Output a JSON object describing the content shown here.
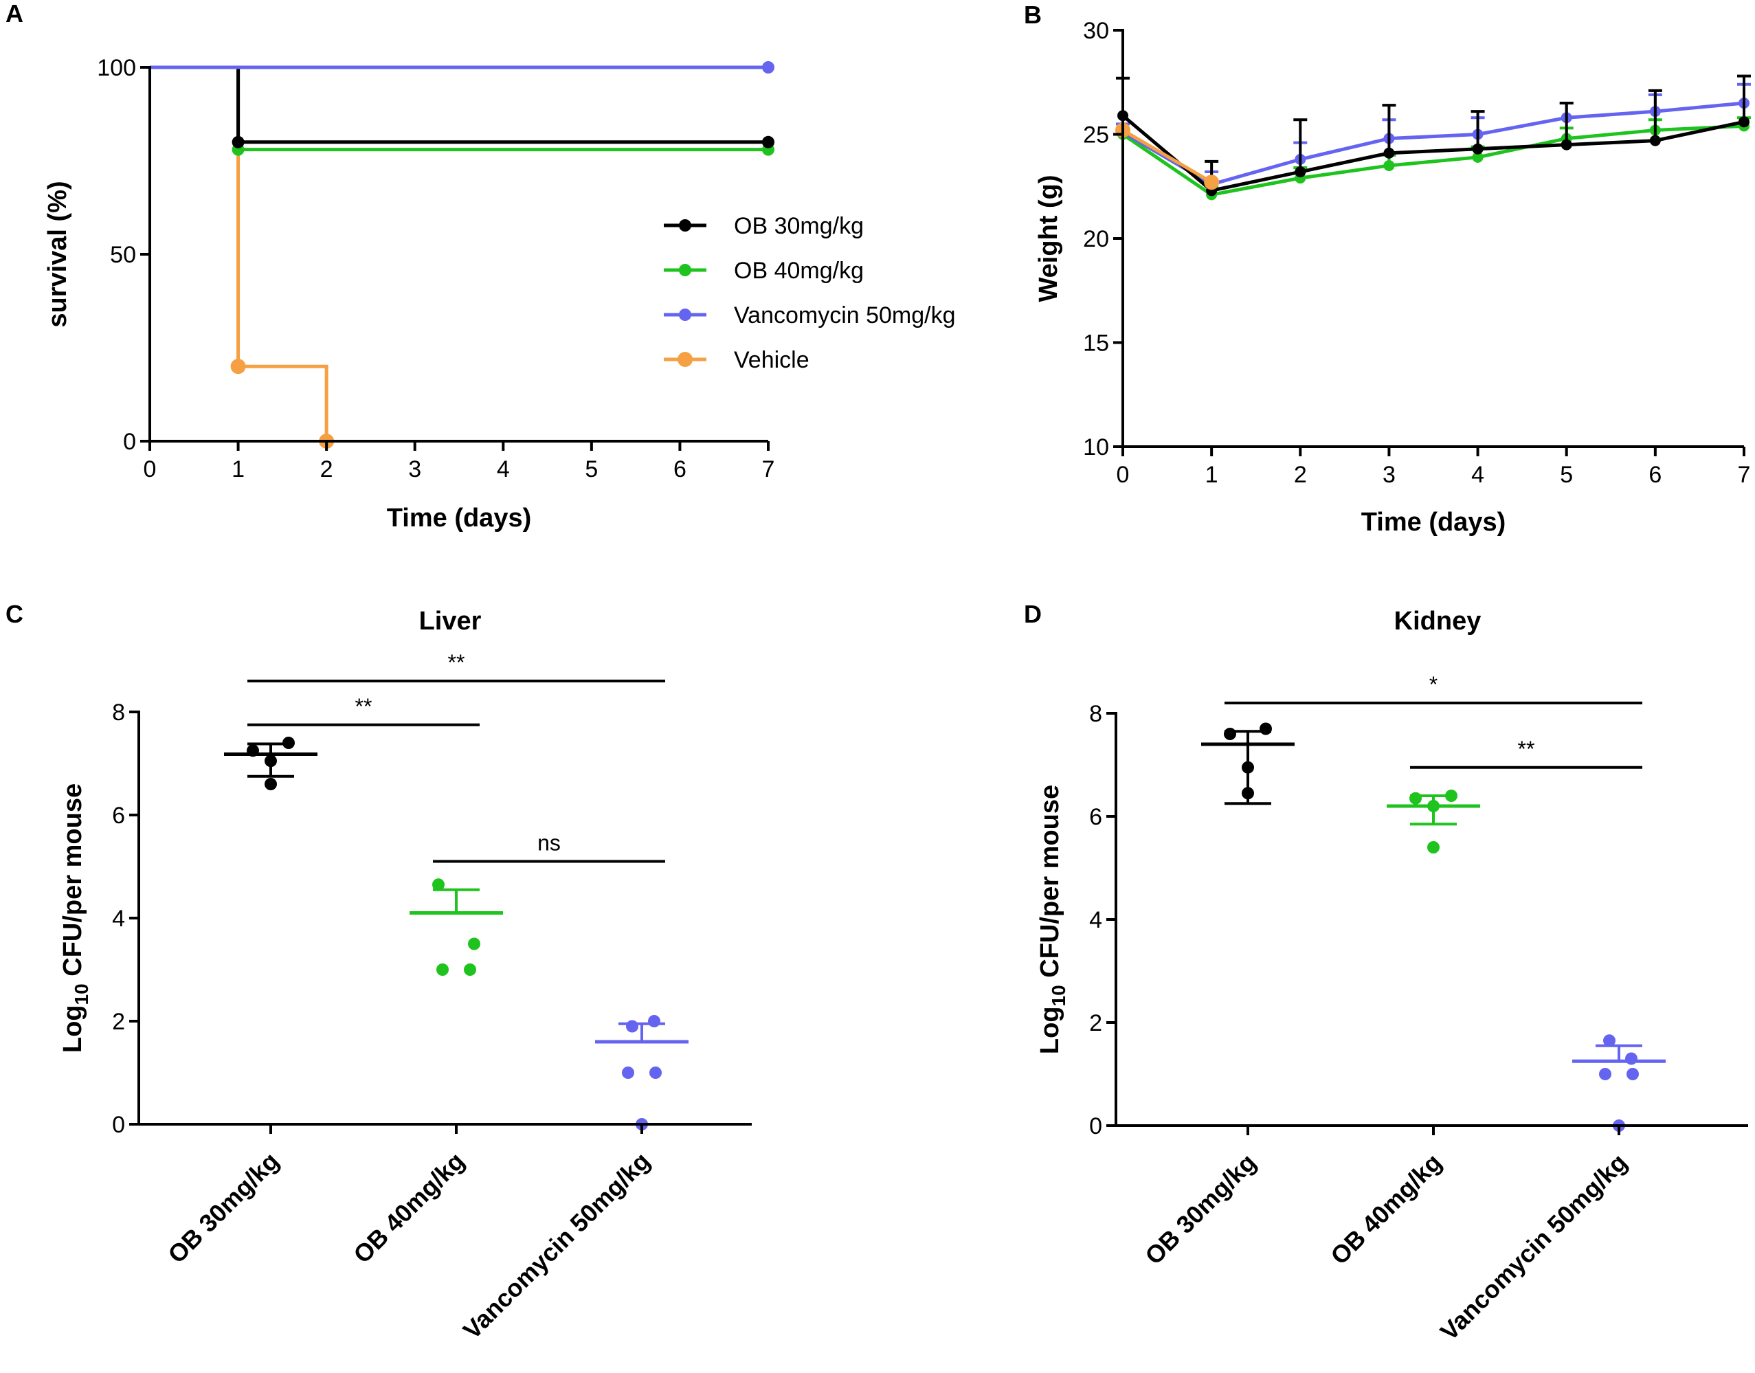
{
  "chart_data": [
    {
      "panel": "A",
      "type": "line",
      "step": true,
      "title": "",
      "xlabel": "Time (days)",
      "ylabel": "survival (%)",
      "xlim": [
        0,
        7
      ],
      "ylim": [
        0,
        100
      ],
      "x_ticks": [
        "0",
        "1",
        "2",
        "3",
        "4",
        "5",
        "6",
        "7"
      ],
      "y_ticks": [
        "0",
        "50",
        "100"
      ],
      "legend_position": "center-right",
      "series": [
        {
          "name": "OB 30mg/kg",
          "color": "#000000",
          "x": [
            0,
            1,
            7
          ],
          "y": [
            100,
            80,
            80
          ],
          "markers_x": [
            1,
            7
          ],
          "markers_y": [
            80,
            80
          ]
        },
        {
          "name": "OB 40mg/kg",
          "color": "#1EC31E",
          "x": [
            0,
            1,
            7
          ],
          "y": [
            100,
            78,
            78
          ],
          "markers_x": [
            1,
            7
          ],
          "markers_y": [
            78,
            78
          ]
        },
        {
          "name": "Vancomycin 50mg/kg",
          "color": "#6464F0",
          "x": [
            0,
            1,
            7
          ],
          "y": [
            100,
            100,
            100
          ],
          "markers_x": [
            7
          ],
          "markers_y": [
            100
          ]
        },
        {
          "name": "Vehicle",
          "color": "#F5A042",
          "x": [
            0,
            1,
            2
          ],
          "y": [
            100,
            20,
            0
          ],
          "markers_x": [
            1,
            2
          ],
          "markers_y": [
            20,
            0
          ]
        }
      ]
    },
    {
      "panel": "B",
      "type": "line",
      "title": "",
      "xlabel": "Time (days)",
      "ylabel": "Weight (g)",
      "xlim": [
        0,
        7
      ],
      "ylim": [
        10,
        30
      ],
      "x_ticks": [
        "0",
        "1",
        "2",
        "3",
        "4",
        "5",
        "6",
        "7"
      ],
      "y_ticks": [
        "10",
        "15",
        "20",
        "25",
        "30"
      ],
      "series": [
        {
          "name": "OB 40mg/kg",
          "color": "#1EC31E",
          "x": [
            0,
            1,
            2,
            3,
            4,
            5,
            6,
            7
          ],
          "y": [
            25.0,
            22.1,
            22.9,
            23.5,
            23.9,
            24.8,
            25.2,
            25.4
          ],
          "err": [
            0.3,
            0.4,
            0.5,
            0.5,
            0.5,
            0.5,
            0.5,
            0.4
          ]
        },
        {
          "name": "Vancomycin 50mg/kg",
          "color": "#6464F0",
          "x": [
            0,
            1,
            2,
            3,
            4,
            5,
            6,
            7
          ],
          "y": [
            25.1,
            22.6,
            23.8,
            24.8,
            25.0,
            25.8,
            26.1,
            26.5
          ],
          "err": [
            0.4,
            0.6,
            0.8,
            0.9,
            0.8,
            0.7,
            0.8,
            0.9
          ]
        },
        {
          "name": "OB 30mg/kg",
          "color": "#000000",
          "x": [
            0,
            1,
            2,
            3,
            4,
            5,
            6,
            7
          ],
          "y": [
            25.9,
            22.3,
            23.2,
            24.1,
            24.3,
            24.5,
            24.7,
            25.6
          ],
          "err": [
            1.8,
            1.4,
            2.5,
            2.3,
            1.8,
            2.0,
            2.4,
            2.2
          ]
        },
        {
          "name": "Vehicle",
          "color": "#F5A042",
          "x": [
            0,
            1
          ],
          "y": [
            25.2,
            22.7
          ],
          "err": [
            0,
            0
          ]
        }
      ]
    },
    {
      "panel": "C",
      "type": "scatter",
      "title": "Liver",
      "xlabel": "",
      "ylabel_prefix": "Log",
      "ylabel_sub": "10",
      "ylabel_suffix": " CFU/per mouse",
      "ylim": [
        0,
        8
      ],
      "y_ticks": [
        "0",
        "2",
        "4",
        "6",
        "8"
      ],
      "categories": [
        "OB 30mg/kg",
        "OB 40mg/kg",
        "Vancomycin 50mg/kg"
      ],
      "series": [
        {
          "name": "OB 30mg/kg",
          "color": "#000000",
          "points": [
            7.25,
            7.4,
            7.05,
            6.6
          ],
          "mean": 7.18,
          "err_high": 7.38,
          "err_low": 6.75
        },
        {
          "name": "OB 40mg/kg",
          "color": "#1EC31E",
          "points": [
            4.65,
            3.5,
            3.0,
            3.0
          ],
          "mean": 4.1,
          "err_high": 4.55,
          "err_low": 4.1
        },
        {
          "name": "Vancomycin 50mg/kg",
          "color": "#6464F0",
          "points": [
            1.9,
            2.0,
            1.0,
            1.0,
            0.0
          ],
          "mean": 1.6,
          "err_high": 1.95,
          "err_low": 1.6
        }
      ],
      "comparisons": [
        {
          "from": 0,
          "to": 1,
          "label": "**",
          "y": 7.75
        },
        {
          "from": 0,
          "to": 2,
          "label": "**",
          "y": 8.6
        },
        {
          "from": 1,
          "to": 2,
          "label": "ns",
          "y": 5.1
        }
      ]
    },
    {
      "panel": "D",
      "type": "scatter",
      "title": "Kidney",
      "xlabel": "",
      "ylabel_prefix": "Log",
      "ylabel_sub": "10",
      "ylabel_suffix": " CFU/per mouse",
      "ylim": [
        0,
        8
      ],
      "y_ticks": [
        "0",
        "2",
        "4",
        "6",
        "8"
      ],
      "categories": [
        "OB 30mg/kg",
        "OB 40mg/kg",
        "Vancomycin 50mg/kg"
      ],
      "series": [
        {
          "name": "OB 30mg/kg",
          "color": "#000000",
          "points": [
            7.6,
            7.7,
            6.95,
            6.45
          ],
          "mean": 7.4,
          "err_high": 7.65,
          "err_low": 6.25
        },
        {
          "name": "OB 40mg/kg",
          "color": "#1EC31E",
          "points": [
            6.35,
            6.4,
            6.2,
            5.4
          ],
          "mean": 6.2,
          "err_high": 6.4,
          "err_low": 5.85
        },
        {
          "name": "Vancomycin 50mg/kg",
          "color": "#6464F0",
          "points": [
            1.65,
            1.3,
            1.0,
            1.0,
            0.0
          ],
          "mean": 1.25,
          "err_high": 1.55,
          "err_low": 1.25
        }
      ],
      "comparisons": [
        {
          "from": 0,
          "to": 2,
          "label": "*",
          "y": 8.2
        },
        {
          "from": 1,
          "to": 2,
          "label": "**",
          "y": 6.95
        }
      ]
    }
  ]
}
